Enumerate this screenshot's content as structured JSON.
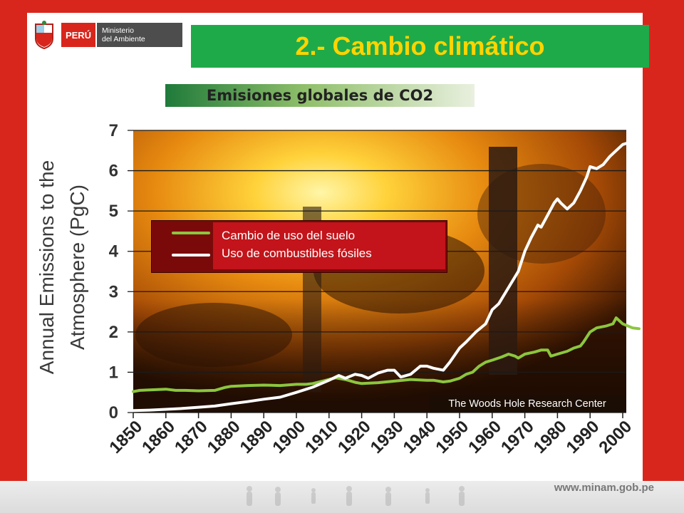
{
  "header": {
    "country": "PERÚ",
    "ministry_line1": "Ministerio",
    "ministry_line2": "del Ambiente",
    "title": "2.- Cambio climático",
    "subtitle": "Emisiones globales de CO2"
  },
  "footer": {
    "url": "www.minam.gob.pe"
  },
  "colors": {
    "land_use": "#8cc63f",
    "fossil_fuels": "#ffffff",
    "title_bg": "#1faa4a",
    "title_text": "#ffd400",
    "frame": "#d9261c"
  },
  "chart_data": {
    "type": "line",
    "title": "",
    "ylabel_line1": "Annual Emissions to the",
    "ylabel_line2": "Atmosphere (PgC)",
    "xlabel": "",
    "ylim": [
      0,
      7
    ],
    "xlim": [
      1850,
      2005
    ],
    "yticks": [
      "0",
      "1",
      "2",
      "3",
      "4",
      "5",
      "6",
      "7"
    ],
    "xticks": [
      "1850",
      "1860",
      "1870",
      "1880",
      "1890",
      "1900",
      "1910",
      "1920",
      "1930",
      "1940",
      "1950",
      "1960",
      "1970",
      "1980",
      "1990",
      "2000"
    ],
    "grid": true,
    "legend_position": "top-left",
    "credit": "The Woods Hole Research Center",
    "series": [
      {
        "name": "Cambio de uso del suelo",
        "color": "#8cc63f",
        "x": [
          1850,
          1852,
          1855,
          1860,
          1863,
          1866,
          1870,
          1875,
          1878,
          1880,
          1885,
          1890,
          1895,
          1900,
          1903,
          1905,
          1908,
          1910,
          1912,
          1915,
          1918,
          1920,
          1925,
          1930,
          1935,
          1940,
          1942,
          1945,
          1947,
          1950,
          1952,
          1954,
          1956,
          1958,
          1960,
          1963,
          1965,
          1967,
          1968,
          1970,
          1973,
          1975,
          1977,
          1978,
          1980,
          1983,
          1985,
          1987,
          1988,
          1990,
          1992,
          1995,
          1997,
          1998,
          2000,
          2003,
          2005
        ],
        "y": [
          0.52,
          0.55,
          0.56,
          0.58,
          0.55,
          0.55,
          0.54,
          0.55,
          0.62,
          0.65,
          0.67,
          0.68,
          0.67,
          0.7,
          0.7,
          0.72,
          0.78,
          0.82,
          0.86,
          0.82,
          0.75,
          0.72,
          0.74,
          0.78,
          0.82,
          0.8,
          0.8,
          0.76,
          0.78,
          0.85,
          0.95,
          1.0,
          1.15,
          1.25,
          1.3,
          1.38,
          1.45,
          1.4,
          1.35,
          1.45,
          1.5,
          1.55,
          1.55,
          1.4,
          1.45,
          1.52,
          1.6,
          1.65,
          1.75,
          2.0,
          2.1,
          2.15,
          2.2,
          2.35,
          2.2,
          2.1,
          2.08
        ]
      },
      {
        "name": "Uso de combustibles fósiles",
        "color": "#ffffff",
        "x": [
          1850,
          1855,
          1860,
          1865,
          1870,
          1875,
          1880,
          1885,
          1890,
          1895,
          1900,
          1905,
          1910,
          1913,
          1915,
          1918,
          1920,
          1922,
          1925,
          1928,
          1930,
          1932,
          1935,
          1938,
          1940,
          1942,
          1945,
          1947,
          1950,
          1952,
          1955,
          1958,
          1960,
          1962,
          1965,
          1968,
          1970,
          1972,
          1974,
          1975,
          1977,
          1979,
          1980,
          1981,
          1983,
          1985,
          1987,
          1989,
          1990,
          1992,
          1994,
          1996,
          1998,
          2000,
          2002,
          2004
        ],
        "y": [
          0.05,
          0.06,
          0.08,
          0.1,
          0.13,
          0.16,
          0.22,
          0.27,
          0.33,
          0.38,
          0.5,
          0.63,
          0.8,
          0.92,
          0.85,
          0.95,
          0.92,
          0.85,
          0.98,
          1.05,
          1.05,
          0.88,
          0.95,
          1.15,
          1.15,
          1.1,
          1.05,
          1.25,
          1.6,
          1.75,
          2.0,
          2.2,
          2.55,
          2.7,
          3.1,
          3.5,
          4.0,
          4.35,
          4.65,
          4.6,
          4.9,
          5.2,
          5.3,
          5.2,
          5.05,
          5.2,
          5.5,
          5.85,
          6.1,
          6.05,
          6.15,
          6.35,
          6.5,
          6.65,
          6.7,
          6.65
        ]
      }
    ]
  }
}
